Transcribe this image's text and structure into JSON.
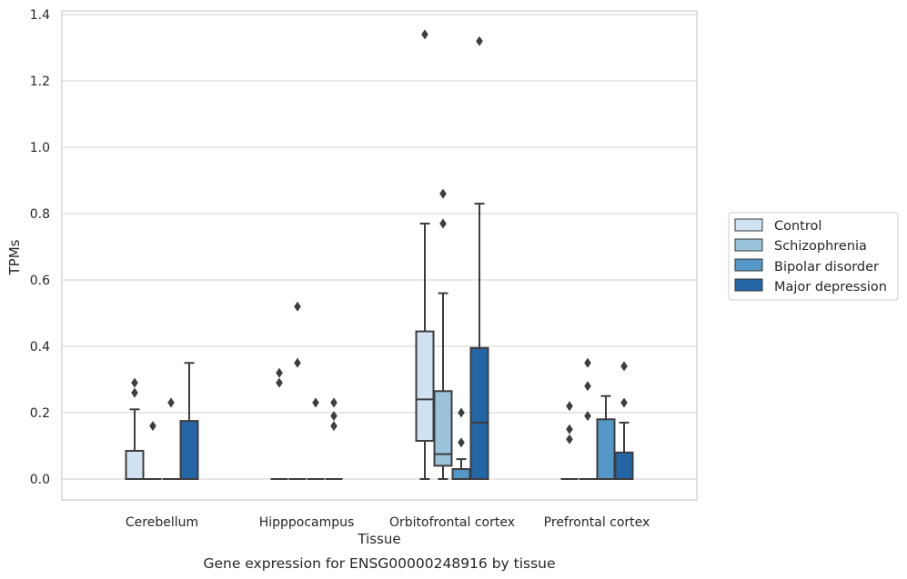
{
  "chart_data": {
    "type": "box",
    "xlabel": "Tissue",
    "ylabel": "TPMs",
    "caption": "Gene expression for ENSG00000248916 by tissue",
    "ylim": [
      -0.06,
      1.41
    ],
    "yticks": [
      0.0,
      0.2,
      0.4,
      0.6,
      0.8,
      1.0,
      1.2,
      1.4
    ],
    "ytick_labels": [
      "0.0",
      "0.2",
      "0.4",
      "0.6",
      "0.8",
      "1.0",
      "1.2",
      "1.4"
    ],
    "grid": "horizontal",
    "legend_position": "right",
    "categories": [
      "Cerebellum",
      "Hipppocampus",
      "Orbitofrontal cortex",
      "Prefrontal cortex"
    ],
    "series": [
      {
        "name": "Control",
        "color": "#d0e1f2",
        "boxes": [
          {
            "whisker_low": 0,
            "q1": 0,
            "median": 0,
            "q3": 0.085,
            "whisker_high": 0.21,
            "outliers": [
              0.26,
              0.29
            ]
          },
          {
            "whisker_low": 0,
            "q1": 0,
            "median": 0,
            "q3": 0,
            "whisker_high": 0,
            "outliers": [
              0.29,
              0.32
            ]
          },
          {
            "whisker_low": 0,
            "q1": 0.115,
            "median": 0.24,
            "q3": 0.445,
            "whisker_high": 0.77,
            "outliers": [
              1.34
            ]
          },
          {
            "whisker_low": 0,
            "q1": 0,
            "median": 0,
            "q3": 0,
            "whisker_high": 0,
            "outliers": [
              0.12,
              0.15,
              0.22
            ]
          }
        ]
      },
      {
        "name": "Schizophrenia",
        "color": "#9ac4dc",
        "boxes": [
          {
            "whisker_low": 0,
            "q1": 0,
            "median": 0,
            "q3": 0,
            "whisker_high": 0,
            "outliers": [
              0.16
            ]
          },
          {
            "whisker_low": 0,
            "q1": 0,
            "median": 0,
            "q3": 0,
            "whisker_high": 0,
            "outliers": [
              0.35,
              0.52
            ]
          },
          {
            "whisker_low": 0,
            "q1": 0.04,
            "median": 0.075,
            "q3": 0.265,
            "whisker_high": 0.56,
            "outliers": [
              0.77,
              0.86
            ]
          },
          {
            "whisker_low": 0,
            "q1": 0,
            "median": 0,
            "q3": 0,
            "whisker_high": 0,
            "outliers": [
              0.19,
              0.28,
              0.35
            ]
          }
        ]
      },
      {
        "name": "Bipolar disorder",
        "color": "#5597c6",
        "boxes": [
          {
            "whisker_low": 0,
            "q1": 0,
            "median": 0,
            "q3": 0,
            "whisker_high": 0,
            "outliers": [
              0.23
            ]
          },
          {
            "whisker_low": 0,
            "q1": 0,
            "median": 0,
            "q3": 0,
            "whisker_high": 0,
            "outliers": [
              0.23
            ]
          },
          {
            "whisker_low": 0,
            "q1": 0,
            "median": 0,
            "q3": 0.03,
            "whisker_high": 0.06,
            "outliers": [
              0.11,
              0.2
            ]
          },
          {
            "whisker_low": 0,
            "q1": 0,
            "median": 0,
            "q3": 0.18,
            "whisker_high": 0.25,
            "outliers": []
          }
        ]
      },
      {
        "name": "Major depression",
        "color": "#2465a5",
        "boxes": [
          {
            "whisker_low": 0,
            "q1": 0,
            "median": 0,
            "q3": 0.175,
            "whisker_high": 0.35,
            "outliers": []
          },
          {
            "whisker_low": 0,
            "q1": 0,
            "median": 0,
            "q3": 0,
            "whisker_high": 0,
            "outliers": [
              0.16,
              0.19,
              0.23
            ]
          },
          {
            "whisker_low": 0,
            "q1": 0,
            "median": 0.17,
            "q3": 0.395,
            "whisker_high": 0.83,
            "outliers": [
              1.32
            ]
          },
          {
            "whisker_low": 0,
            "q1": 0,
            "median": 0,
            "q3": 0.08,
            "whisker_high": 0.17,
            "outliers": [
              0.23,
              0.34
            ]
          }
        ]
      }
    ]
  }
}
